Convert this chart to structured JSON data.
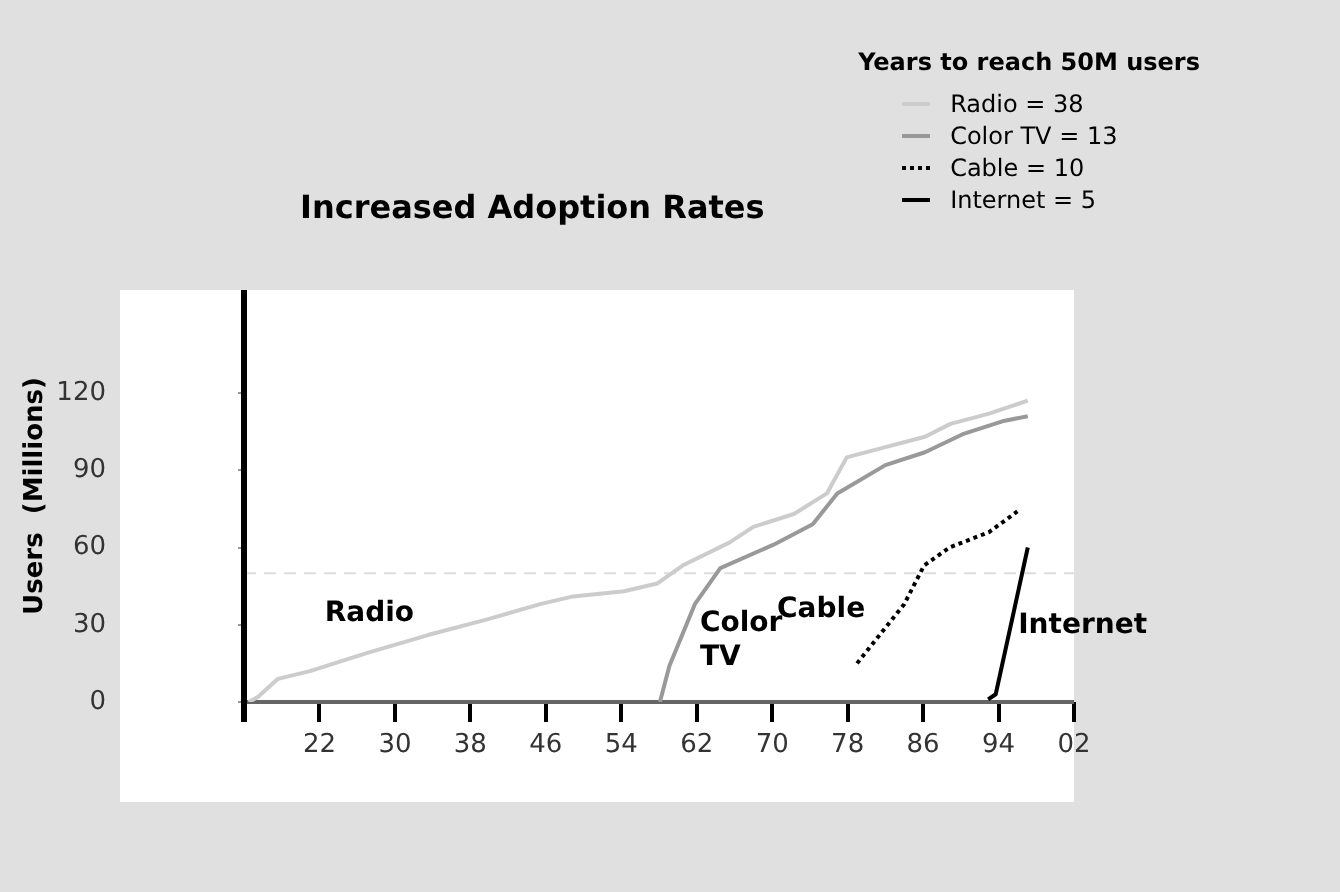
{
  "chart_data": {
    "type": "line",
    "title": "Increased Adoption Rates",
    "ylabel": "Users  (Millions)",
    "legend_title": "Years to reach 50M users",
    "legend": "top right",
    "grid": false,
    "marker": "none",
    "xlim": [
      1914,
      2002
    ],
    "xticks": [
      {
        "value": 1922,
        "label": "22"
      },
      {
        "value": 1930,
        "label": "30"
      },
      {
        "value": 1938,
        "label": "38"
      },
      {
        "value": 1946,
        "label": "46"
      },
      {
        "value": 1954,
        "label": "54"
      },
      {
        "value": 1962,
        "label": "62"
      },
      {
        "value": 1970,
        "label": "70"
      },
      {
        "value": 1978,
        "label": "78"
      },
      {
        "value": 1986,
        "label": "86"
      },
      {
        "value": 1994,
        "label": "94"
      },
      {
        "value": 2002,
        "label": "02"
      }
    ],
    "ylim": [
      0,
      160
    ],
    "yticks": [
      0,
      30,
      60,
      90,
      120
    ],
    "ref_lines": [
      {
        "axis": "y",
        "value": 50,
        "color": "#dddddd",
        "line_style": "dashed"
      }
    ],
    "annotations": [
      "Radio",
      "Color TV",
      "Cable",
      "Internet"
    ],
    "series": [
      {
        "name": "Radio = 38",
        "color": "#cccccc",
        "line_style": "solid",
        "x": [
          1914.5,
          1915.5,
          1917.6,
          1921,
          1927,
          1933.5,
          1939.7,
          1945.4,
          1948.9,
          1954.3,
          1957.8,
          1960.5,
          1965.5,
          1968,
          1972.3,
          1975.8,
          1977.9,
          1982,
          1986.2,
          1988.9,
          1993,
          1997.1
        ],
        "values": [
          0,
          2,
          9,
          12,
          19,
          26,
          32,
          38,
          41,
          43,
          46,
          53,
          62,
          68,
          73,
          81,
          95,
          99,
          103,
          108,
          112,
          117
        ]
      },
      {
        "name": "Color TV = 13",
        "color": "#999999",
        "line_style": "solid",
        "x": [
          1958.1,
          1959.1,
          1961.8,
          1964.5,
          1970.1,
          1974.3,
          1976.9,
          1982,
          1986.2,
          1990.2,
          1994.4,
          1997.1
        ],
        "values": [
          0,
          14,
          38,
          52,
          61,
          69,
          81,
          92,
          97,
          104,
          109,
          111
        ]
      },
      {
        "name": "Cable = 10",
        "color": "#000000",
        "line_style": "dotted",
        "x": [
          1979,
          1984,
          1986.1,
          1988.8,
          1993,
          1996
        ],
        "values": [
          15,
          38,
          53,
          60,
          66,
          74
        ]
      },
      {
        "name": "Internet = 5",
        "color": "#000000",
        "line_style": "solid",
        "x": [
          1992.9,
          1993.7,
          1997.1
        ],
        "values": [
          1,
          3,
          60
        ]
      }
    ]
  }
}
